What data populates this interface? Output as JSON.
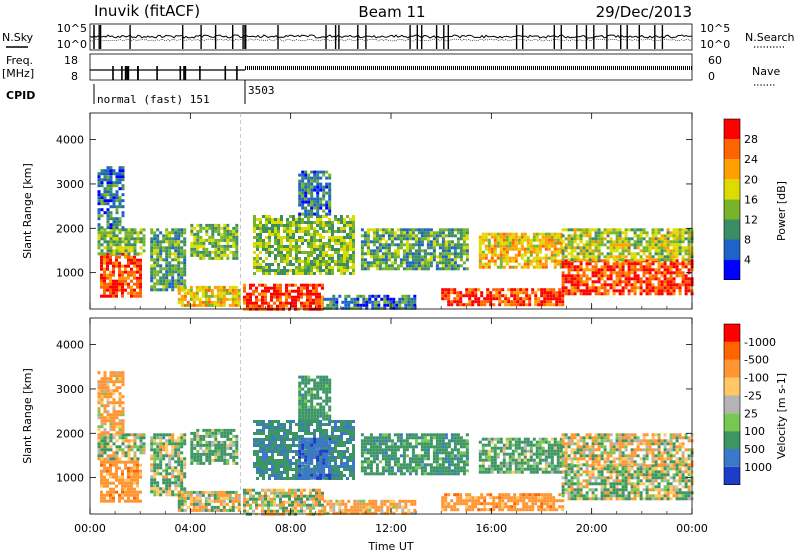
{
  "header": {
    "station": "Inuvik (fitACF)",
    "beam": "Beam 11",
    "date": "29/Dec/2013"
  },
  "strip_labels": {
    "nsky": "N.Sky",
    "nsearch": "N.Search",
    "freq_line1": "Freq.",
    "freq_line2": "[MHz]",
    "nave": "Nave",
    "cpid": "CPID",
    "nsky_ticks": [
      "10^5",
      "10^0"
    ],
    "nsearch_ticks": [
      "10^5",
      "10^0"
    ],
    "freq_ticks": [
      "18",
      "8"
    ],
    "nave_ticks": [
      "60",
      "0"
    ],
    "cpid_mode_1": "normal (fast) 151",
    "cpid_mode_2": "3503"
  },
  "chart_data": [
    {
      "type": "heatmap",
      "panel": "power",
      "xlabel": "",
      "ylabel": "Slant Range [km]",
      "x_ticks": [
        "00:00",
        "04:00",
        "08:00",
        "12:00",
        "16:00",
        "20:00",
        "00:00"
      ],
      "y_ticks": [
        1000,
        2000,
        3000,
        4000
      ],
      "xlim": [
        0,
        24
      ],
      "ylim": [
        180,
        4600
      ],
      "colorbar_label": "Power [dB]",
      "colorbar_ticks": [
        4,
        8,
        12,
        16,
        20,
        24,
        28
      ],
      "colorbar_colors": [
        "#0000ff",
        "#1e64c8",
        "#3c8c64",
        "#78b428",
        "#dcdc00",
        "#ffa000",
        "#ff6400",
        "#ff0000"
      ],
      "regions": [
        {
          "t0": 0.4,
          "t1": 2.0,
          "r0": 500,
          "r1": 1450,
          "level": 28
        },
        {
          "t0": 0.3,
          "t1": 2.2,
          "r0": 1400,
          "r1": 2000,
          "level": 14
        },
        {
          "t0": 0.3,
          "t1": 1.3,
          "r0": 2000,
          "r1": 3400,
          "level": 8
        },
        {
          "t0": 2.4,
          "t1": 3.8,
          "r0": 600,
          "r1": 2000,
          "level": 12
        },
        {
          "t0": 3.5,
          "t1": 6.0,
          "r0": 250,
          "r1": 700,
          "level": 20
        },
        {
          "t0": 4.0,
          "t1": 5.8,
          "r0": 1300,
          "r1": 2100,
          "level": 14
        },
        {
          "t0": 6.1,
          "t1": 9.3,
          "r0": 200,
          "r1": 750,
          "level": 28
        },
        {
          "t0": 6.5,
          "t1": 10.5,
          "r0": 1000,
          "r1": 2300,
          "level": 14
        },
        {
          "t0": 8.3,
          "t1": 9.6,
          "r0": 2300,
          "r1": 3300,
          "level": 8
        },
        {
          "t0": 9.3,
          "t1": 13.0,
          "r0": 200,
          "r1": 500,
          "level": 8
        },
        {
          "t0": 10.8,
          "t1": 15.0,
          "r0": 1100,
          "r1": 2000,
          "level": 12
        },
        {
          "t0": 15.5,
          "t1": 18.8,
          "r0": 1100,
          "r1": 1900,
          "level": 20
        },
        {
          "t0": 14.0,
          "t1": 18.8,
          "r0": 250,
          "r1": 650,
          "level": 28
        },
        {
          "t0": 18.8,
          "t1": 24.0,
          "r0": 500,
          "r1": 1300,
          "level": 28
        },
        {
          "t0": 18.8,
          "t1": 24.0,
          "r0": 1300,
          "r1": 2000,
          "level": 16
        }
      ]
    },
    {
      "type": "heatmap",
      "panel": "velocity",
      "xlabel": "Time UT",
      "ylabel": "Slant Range [km]",
      "x_ticks": [
        "00:00",
        "04:00",
        "08:00",
        "12:00",
        "16:00",
        "20:00",
        "00:00"
      ],
      "y_ticks": [
        1000,
        2000,
        3000,
        4000
      ],
      "xlim": [
        0,
        24
      ],
      "ylim": [
        180,
        4600
      ],
      "colorbar_label": "Velocity [m s-1]",
      "colorbar_ticks": [
        1000,
        500,
        100,
        25,
        -25,
        -100,
        -500,
        -1000
      ],
      "colorbar_colors": [
        "#1e3cc8",
        "#3c78c8",
        "#3c9664",
        "#78c850",
        "#b4b4b4",
        "#ffc864",
        "#ff9632",
        "#ff6400",
        "#ff0000"
      ],
      "regions": [
        {
          "t0": 0.4,
          "t1": 2.0,
          "r0": 500,
          "r1": 1450,
          "level": -300
        },
        {
          "t0": 0.3,
          "t1": 2.2,
          "r0": 1400,
          "r1": 2000,
          "level": 50
        },
        {
          "t0": 0.3,
          "t1": 1.3,
          "r0": 2000,
          "r1": 3400,
          "level": -200
        },
        {
          "t0": 2.4,
          "t1": 3.8,
          "r0": 600,
          "r1": 2000,
          "level": 100
        },
        {
          "t0": 3.5,
          "t1": 6.0,
          "r0": 250,
          "r1": 700,
          "level": 0
        },
        {
          "t0": 4.0,
          "t1": 5.8,
          "r0": 1300,
          "r1": 2100,
          "level": 200
        },
        {
          "t0": 6.1,
          "t1": 9.3,
          "r0": 200,
          "r1": 750,
          "level": 0
        },
        {
          "t0": 6.5,
          "t1": 10.5,
          "r0": 1000,
          "r1": 2300,
          "level": 400
        },
        {
          "t0": 8.3,
          "t1": 9.6,
          "r0": 1000,
          "r1": 1900,
          "level": 900
        },
        {
          "t0": 8.3,
          "t1": 9.6,
          "r0": 2300,
          "r1": 3300,
          "level": 300
        },
        {
          "t0": 9.3,
          "t1": 13.0,
          "r0": 200,
          "r1": 500,
          "level": -200
        },
        {
          "t0": 10.8,
          "t1": 15.0,
          "r0": 1100,
          "r1": 2000,
          "level": 300
        },
        {
          "t0": 15.5,
          "t1": 18.8,
          "r0": 1100,
          "r1": 1900,
          "level": 200
        },
        {
          "t0": 14.0,
          "t1": 18.8,
          "r0": 250,
          "r1": 650,
          "level": -300
        },
        {
          "t0": 18.8,
          "t1": 24.0,
          "r0": 500,
          "r1": 1300,
          "level": 60
        },
        {
          "t0": 18.8,
          "t1": 24.0,
          "r0": 1300,
          "r1": 2000,
          "level": -50
        }
      ]
    }
  ]
}
